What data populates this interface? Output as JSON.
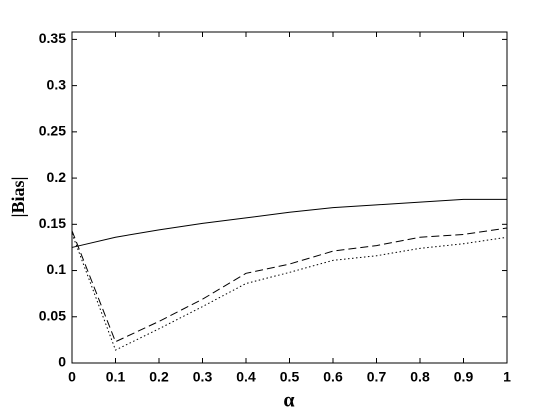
{
  "chart_data": {
    "type": "line",
    "xlabel": "α",
    "ylabel": "|Bias|",
    "x": [
      0,
      0.1,
      0.2,
      0.3,
      0.4,
      0.5,
      0.6,
      0.7,
      0.8,
      0.9,
      1
    ],
    "series": [
      {
        "color": "#000000",
        "dash": "solid",
        "values": [
          0.125,
          0.136,
          0.144,
          0.151,
          0.157,
          0.163,
          0.168,
          0.171,
          0.174,
          0.177,
          0.177
        ]
      },
      {
        "color": "#000000",
        "dash": "dashed",
        "values": [
          0.143,
          0.023,
          0.045,
          0.069,
          0.097,
          0.107,
          0.121,
          0.127,
          0.136,
          0.139,
          0.146
        ]
      },
      {
        "color": "#000000",
        "dash": "dotted",
        "values": [
          0.14,
          0.014,
          0.037,
          0.061,
          0.086,
          0.098,
          0.111,
          0.116,
          0.124,
          0.129,
          0.136
        ]
      }
    ],
    "xlim": [
      0,
      1
    ],
    "xticks": [
      0,
      0.1,
      0.2,
      0.3,
      0.4,
      0.5,
      0.6,
      0.7,
      0.8,
      0.9,
      1
    ],
    "ylim": [
      0,
      0.358
    ],
    "yticks": [
      0,
      0.05,
      0.1,
      0.15,
      0.2,
      0.25,
      0.3,
      0.35
    ],
    "grid": false
  }
}
